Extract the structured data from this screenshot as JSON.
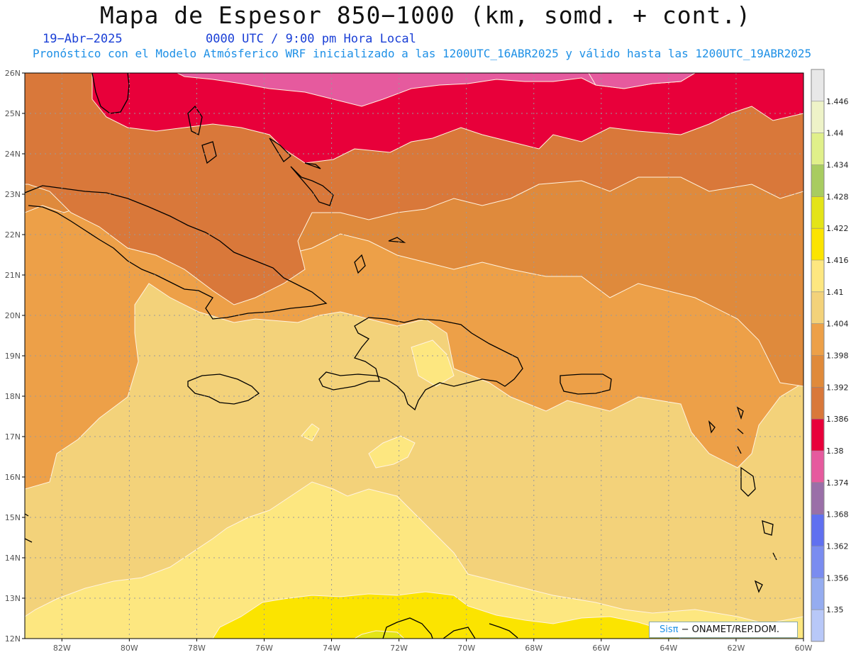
{
  "header": {
    "title": "Mapa de Espesor 850−1000 (km, somd. + cont.)",
    "date": "19−Abr−2025",
    "valid_time": "0000 UTC / 9:00 pm Hora Local",
    "forecast": "Pronóstico con el Modelo Atmósferico WRF inicializado a las 1200UTC_16ABR2025 y válido hasta las  1200UTC_19ABR2025"
  },
  "map": {
    "lat_labels": [
      "26N",
      "25N",
      "24N",
      "23N",
      "22N",
      "21N",
      "20N",
      "19N",
      "18N",
      "17N",
      "16N",
      "15N",
      "14N",
      "13N",
      "12N"
    ],
    "lon_labels": [
      "82W",
      "80W",
      "78W",
      "76W",
      "74W",
      "72W",
      "70W",
      "68W",
      "66W",
      "64W",
      "62W",
      "60W"
    ],
    "lat_range": [
      12,
      26
    ],
    "lon_range": [
      -83.1,
      -60
    ],
    "grid": "dotted"
  },
  "colorbar": {
    "levels": [
      "1.446",
      "1.44",
      "1.434",
      "1.428",
      "1.422",
      "1.416",
      "1.41",
      "1.404",
      "1.398",
      "1.392",
      "1.386",
      "1.38",
      "1.374",
      "1.368",
      "1.362",
      "1.356",
      "1.35"
    ],
    "colors": [
      "#e8e8e8",
      "#eef3c8",
      "#e0f08a",
      "#a8cc60",
      "#e4e418",
      "#fbe400",
      "#fde780",
      "#f3d27a",
      "#eda048",
      "#e08a3a",
      "#d9783a",
      "#e8003a",
      "#e65a9e",
      "#9a6fa8",
      "#6070f0",
      "#7a8cf0",
      "#95acf0",
      "#b8c8f8"
    ]
  },
  "credit": {
    "sis": "Sisπ",
    "org": "−  ONAMET/REP.DOM."
  }
}
